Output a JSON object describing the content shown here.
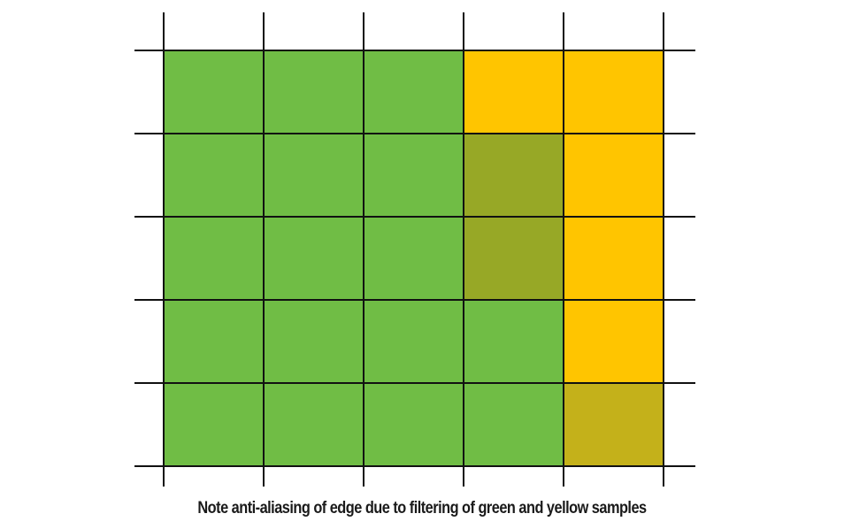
{
  "colors": {
    "green": "#70bd45",
    "yellow": "#ffc500",
    "olive": "#97a826",
    "mustard": "#c4b11a",
    "grid_line": "#111111"
  },
  "grid": {
    "rows": 5,
    "cols": 5,
    "cells": [
      [
        "green",
        "green",
        "green",
        "yellow",
        "yellow"
      ],
      [
        "green",
        "green",
        "green",
        "olive",
        "yellow"
      ],
      [
        "green",
        "green",
        "green",
        "olive",
        "yellow"
      ],
      [
        "green",
        "green",
        "green",
        "green",
        "yellow"
      ],
      [
        "green",
        "green",
        "green",
        "green",
        "mustard"
      ]
    ]
  },
  "caption": "Note anti-aliasing of edge due to filtering of green and yellow samples"
}
